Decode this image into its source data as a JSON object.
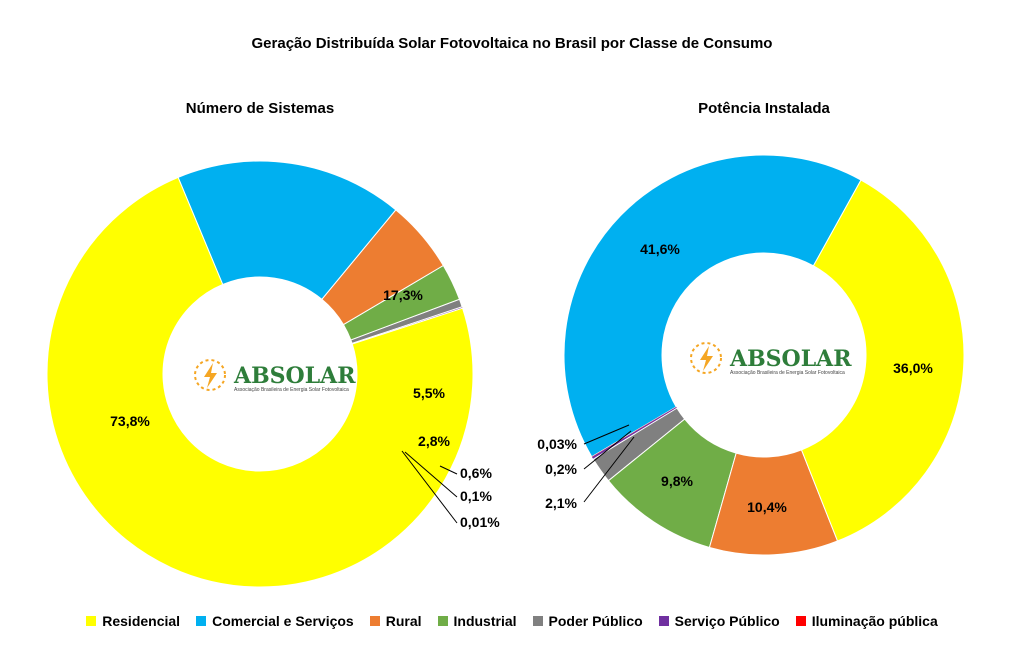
{
  "title": "Geração Distribuída Solar Fotovoltaica no Brasil por Classe de Consumo",
  "logo": {
    "text": "ABSOLAR",
    "subtext": "Associação Brasileira de Energia Solar Fotovoltaica",
    "color": "#2e7d3a",
    "accent": "#f5a623"
  },
  "colors": {
    "Residencial": "#ffff00",
    "Comercial e Serviços": "#00b0f0",
    "Rural": "#ed7d31",
    "Industrial": "#70ad47",
    "Poder Público": "#808080",
    "Serviço Público": "#7030a0",
    "Iluminação pública": "#ff0000"
  },
  "legend": [
    "Residencial",
    "Comercial e Serviços",
    "Rural",
    "Industrial",
    "Poder Público",
    "Serviço Público",
    "Iluminação pública"
  ],
  "chart_data": [
    {
      "type": "pie",
      "title": "Número de Sistemas",
      "categories": [
        "Residencial",
        "Comercial e Serviços",
        "Rural",
        "Industrial",
        "Poder Público",
        "Serviço Público",
        "Iluminação pública"
      ],
      "values": [
        73.8,
        17.3,
        5.5,
        2.8,
        0.6,
        0.1,
        0.01
      ],
      "value_labels": [
        "73,8%",
        "17,3%",
        "5,5%",
        "2,8%",
        "0,6%",
        "0,1%",
        "0,01%"
      ]
    },
    {
      "type": "pie",
      "title": "Potência Instalada",
      "categories": [
        "Residencial",
        "Rural",
        "Industrial",
        "Poder Público",
        "Serviço Público",
        "Iluminação pública",
        "Comercial e Serviços"
      ],
      "values": [
        36.0,
        10.4,
        9.8,
        2.1,
        0.2,
        0.03,
        41.6
      ],
      "value_labels": [
        "36,0%",
        "10,4%",
        "9,8%",
        "2,1%",
        "0,2%",
        "0,03%",
        "41,6%"
      ]
    }
  ]
}
